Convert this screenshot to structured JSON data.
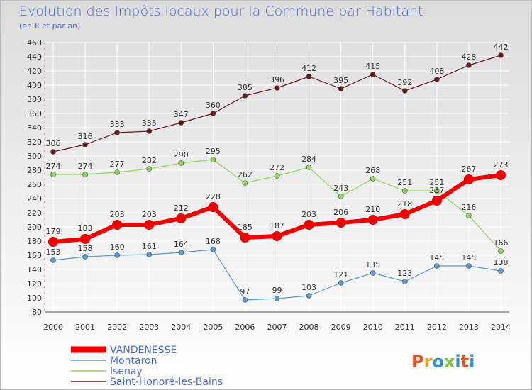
{
  "colors": {
    "background_top": "#dcdcdc",
    "background_bottom": "#ffffff",
    "grid": "#ffffff",
    "title": "#4a6fd6",
    "axis_dashes": "#cc3333"
  },
  "logo": {
    "text": "Proxiti",
    "colors": [
      "#e8541c",
      "#f2a21a",
      "#2c8fd6",
      "#7cc242",
      "#2c8fd6",
      "#e8541c",
      "#2c8fd6"
    ]
  },
  "chart_data": {
    "type": "line",
    "title": "Evolution des Impôts locaux pour la Commune par Habitant",
    "subtitle": "(en € et par an)",
    "xlabel": "",
    "ylabel": "",
    "x": [
      "2000",
      "2001",
      "2002",
      "2003",
      "2004",
      "2005",
      "2006",
      "2007",
      "2008",
      "2009",
      "2010",
      "2011",
      "2012",
      "2013",
      "2014"
    ],
    "ylim": [
      80,
      460
    ],
    "yticks": [
      80,
      100,
      120,
      140,
      160,
      180,
      200,
      220,
      240,
      260,
      280,
      300,
      320,
      340,
      360,
      380,
      400,
      420,
      440,
      460
    ],
    "grid": true,
    "legend_placement": "bottom-left",
    "series": [
      {
        "name": "Saint-Honoré-les-Bains",
        "color": "#6b1a1a",
        "width": 1.2,
        "marker": 3.5,
        "values": [
          306,
          316,
          333,
          335,
          347,
          360,
          385,
          396,
          412,
          395,
          415,
          392,
          408,
          428,
          442
        ],
        "labels": [
          "306",
          "316",
          "333",
          "335",
          "347",
          "360",
          "385",
          "396",
          "412",
          "395",
          "415",
          "392",
          "408",
          "428",
          "442"
        ]
      },
      {
        "name": "Isenay",
        "color": "#8ed65a",
        "width": 1.2,
        "marker": 3.5,
        "values": [
          274,
          274,
          277,
          282,
          290,
          295,
          262,
          272,
          284,
          243,
          268,
          251,
          251,
          216,
          166
        ],
        "labels": [
          "274",
          "274",
          "277",
          "282",
          "290",
          "295",
          "262",
          "272",
          "284",
          "243",
          "268",
          "251",
          "251",
          "216",
          "166"
        ]
      },
      {
        "name": "Montaron",
        "color": "#5a9ad6",
        "width": 1.2,
        "marker": 3.5,
        "values": [
          153,
          158,
          160,
          161,
          164,
          168,
          97,
          99,
          103,
          121,
          135,
          123,
          145,
          145,
          138
        ],
        "labels": [
          "153",
          "158",
          "160",
          "161",
          "164",
          "168",
          "97",
          "99",
          "103",
          "121",
          "135",
          "123",
          "145",
          "145",
          "138"
        ]
      },
      {
        "name": "VANDENESSE",
        "color": "#ee0000",
        "width": 6,
        "marker": 7,
        "values": [
          179,
          183,
          203,
          203,
          212,
          228,
          185,
          187,
          203,
          206,
          210,
          218,
          237,
          267,
          273
        ],
        "labels": [
          "179",
          "183",
          "203",
          "203",
          "212",
          "228",
          "185",
          "187",
          "203",
          "206",
          "210",
          "218",
          "237",
          "267",
          "273"
        ]
      }
    ]
  }
}
